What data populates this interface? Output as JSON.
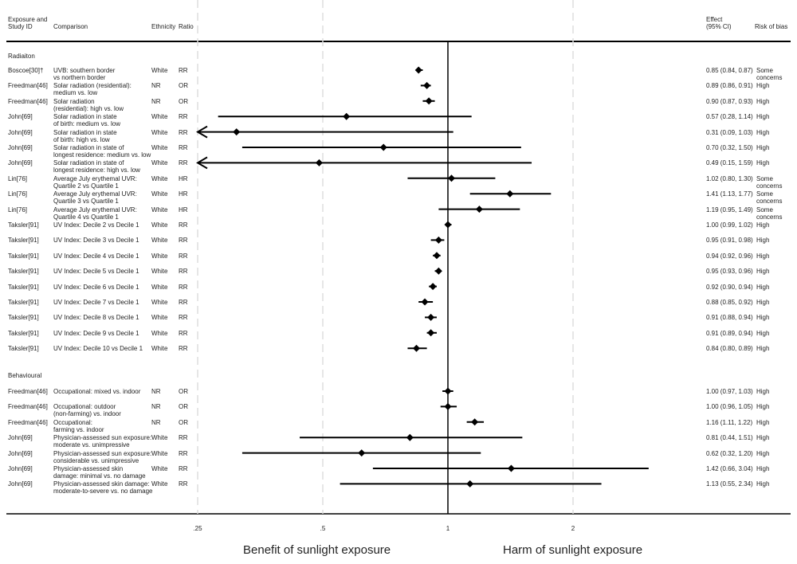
{
  "headers": {
    "study": "Exposure and\nStudy ID",
    "comparison": "Comparison",
    "ethnicity": "Ethnicity",
    "ratio": "Ratio",
    "effect": "Effect\n(95% CI)",
    "bias": "Risk of bias"
  },
  "sections": [
    {
      "title": "Radiaiton",
      "rows": [
        {
          "study": "Boscoe[30]†",
          "comparison": "UVB: southern border\nvs northern border",
          "ethnicity": "White",
          "ratio": "RR",
          "est": 0.85,
          "lo": 0.84,
          "hi": 0.87,
          "effect": "0.85 (0.84, 0.87)",
          "bias": "Some\nconcerns"
        },
        {
          "study": "Freedman[46]",
          "comparison": "Solar radiation (residential):\nmedium vs. low",
          "ethnicity": "NR",
          "ratio": "OR",
          "est": 0.89,
          "lo": 0.86,
          "hi": 0.91,
          "effect": "0.89 (0.86, 0.91)",
          "bias": "High"
        },
        {
          "study": "Freedman[46]",
          "comparison": "Solar radiation\n(residential): high vs. low",
          "ethnicity": "NR",
          "ratio": "OR",
          "est": 0.9,
          "lo": 0.87,
          "hi": 0.93,
          "effect": "0.90 (0.87, 0.93)",
          "bias": "High"
        },
        {
          "study": "John[69]",
          "comparison": "Solar radiation in state\nof birth: medium vs. low",
          "ethnicity": "White",
          "ratio": "RR",
          "est": 0.57,
          "lo": 0.28,
          "hi": 1.14,
          "effect": "0.57 (0.28, 1.14)",
          "bias": "High"
        },
        {
          "study": "John[69]",
          "comparison": "Solar radiation in state\nof birth: high vs. low",
          "ethnicity": "White",
          "ratio": "RR",
          "est": 0.31,
          "lo": 0.09,
          "hi": 1.03,
          "effect": "0.31 (0.09, 1.03)",
          "bias": "High"
        },
        {
          "study": "John[69]",
          "comparison": "Solar radiation in state of\nlongest residence: medium vs. low",
          "ethnicity": "White",
          "ratio": "RR",
          "est": 0.7,
          "lo": 0.32,
          "hi": 1.5,
          "effect": "0.70 (0.32, 1.50)",
          "bias": "High"
        },
        {
          "study": "John[69]",
          "comparison": "Solar radiation in state of\nlongest residence: high vs. low",
          "ethnicity": "White",
          "ratio": "RR",
          "est": 0.49,
          "lo": 0.15,
          "hi": 1.59,
          "effect": "0.49 (0.15, 1.59)",
          "bias": "High"
        },
        {
          "study": "Lin[76]",
          "comparison": "Average July erythemal UVR:\nQuartile 2 vs Quartile 1",
          "ethnicity": "White",
          "ratio": "HR",
          "est": 1.02,
          "lo": 0.8,
          "hi": 1.3,
          "effect": "1.02 (0.80, 1.30)",
          "bias": "Some\nconcerns"
        },
        {
          "study": "Lin[76]",
          "comparison": "Average July erythemal UVR:\nQuartile 3 vs Quartile 1",
          "ethnicity": "White",
          "ratio": "HR",
          "est": 1.41,
          "lo": 1.13,
          "hi": 1.77,
          "effect": "1.41 (1.13, 1.77)",
          "bias": "Some\nconcerns"
        },
        {
          "study": "Lin[76]",
          "comparison": "Average July erythemal UVR:\nQuartile 4 vs Quartile 1",
          "ethnicity": "White",
          "ratio": "HR",
          "est": 1.19,
          "lo": 0.95,
          "hi": 1.49,
          "effect": "1.19 (0.95, 1.49)",
          "bias": "Some\nconcerns"
        },
        {
          "study": "Taksler[91]",
          "comparison": "UV Index: Decile 2 vs Decile 1",
          "ethnicity": "White",
          "ratio": "RR",
          "est": 1.0,
          "lo": 0.99,
          "hi": 1.02,
          "effect": "1.00 (0.99, 1.02)",
          "bias": "High"
        },
        {
          "study": "Taksler[91]",
          "comparison": "UV Index: Decile 3 vs Decile 1",
          "ethnicity": "White",
          "ratio": "RR",
          "est": 0.95,
          "lo": 0.91,
          "hi": 0.98,
          "effect": "0.95 (0.91, 0.98)",
          "bias": "High"
        },
        {
          "study": "Taksler[91]",
          "comparison": "UV Index: Decile 4 vs Decile 1",
          "ethnicity": "White",
          "ratio": "RR",
          "est": 0.94,
          "lo": 0.92,
          "hi": 0.96,
          "effect": "0.94 (0.92, 0.96)",
          "bias": "High"
        },
        {
          "study": "Taksler[91]",
          "comparison": "UV Index: Decile 5 vs Decile 1",
          "ethnicity": "White",
          "ratio": "RR",
          "est": 0.95,
          "lo": 0.93,
          "hi": 0.96,
          "effect": "0.95 (0.93, 0.96)",
          "bias": "High"
        },
        {
          "study": "Taksler[91]",
          "comparison": "UV Index: Decile 6 vs Decile 1",
          "ethnicity": "White",
          "ratio": "RR",
          "est": 0.92,
          "lo": 0.9,
          "hi": 0.94,
          "effect": "0.92 (0.90, 0.94)",
          "bias": "High"
        },
        {
          "study": "Taksler[91]",
          "comparison": "UV Index: Decile 7 vs Decile 1",
          "ethnicity": "White",
          "ratio": "RR",
          "est": 0.88,
          "lo": 0.85,
          "hi": 0.92,
          "effect": "0.88 (0.85, 0.92)",
          "bias": "High"
        },
        {
          "study": "Taksler[91]",
          "comparison": "UV Index: Decile 8 vs Decile 1",
          "ethnicity": "White",
          "ratio": "RR",
          "est": 0.91,
          "lo": 0.88,
          "hi": 0.94,
          "effect": "0.91 (0.88, 0.94)",
          "bias": "High"
        },
        {
          "study": "Taksler[91]",
          "comparison": "UV Index: Decile 9 vs Decile 1",
          "ethnicity": "White",
          "ratio": "RR",
          "est": 0.91,
          "lo": 0.89,
          "hi": 0.94,
          "effect": "0.91 (0.89, 0.94)",
          "bias": "High"
        },
        {
          "study": "Taksler[91]",
          "comparison": "UV Index: Decile 10 vs Decile 1",
          "ethnicity": "White",
          "ratio": "RR",
          "est": 0.84,
          "lo": 0.8,
          "hi": 0.89,
          "effect": "0.84 (0.80, 0.89)",
          "bias": "High"
        }
      ]
    },
    {
      "title": "Behavioural",
      "rows": [
        {
          "study": "Freedman[46]",
          "comparison": "Occupational: mixed vs. indoor",
          "ethnicity": "NR",
          "ratio": "OR",
          "est": 1.0,
          "lo": 0.97,
          "hi": 1.03,
          "effect": "1.00 (0.97, 1.03)",
          "bias": "High"
        },
        {
          "study": "Freedman[46]",
          "comparison": "Occupational: outdoor\n(non-farming) vs. indoor",
          "ethnicity": "NR",
          "ratio": "OR",
          "est": 1.0,
          "lo": 0.96,
          "hi": 1.05,
          "effect": "1.00 (0.96, 1.05)",
          "bias": "High"
        },
        {
          "study": "Freedman[46]",
          "comparison": "Occupational:\nfarming vs. indoor",
          "ethnicity": "NR",
          "ratio": "OR",
          "est": 1.16,
          "lo": 1.11,
          "hi": 1.22,
          "effect": "1.16 (1.11, 1.22)",
          "bias": "High"
        },
        {
          "study": "John[69]",
          "comparison": "Physician-assessed sun exposure:\nmoderate vs. unimpressive",
          "ethnicity": "White",
          "ratio": "RR",
          "est": 0.81,
          "lo": 0.44,
          "hi": 1.51,
          "effect": "0.81 (0.44, 1.51)",
          "bias": "High"
        },
        {
          "study": "John[69]",
          "comparison": "Physician-assessed sun exposure:\nconsiderable vs. unimpressive",
          "ethnicity": "White",
          "ratio": "RR",
          "est": 0.62,
          "lo": 0.32,
          "hi": 1.2,
          "effect": "0.62 (0.32, 1.20)",
          "bias": "High"
        },
        {
          "study": "John[69]",
          "comparison": "Physician-assessed skin\ndamage: minimal vs. no damage",
          "ethnicity": "White",
          "ratio": "RR",
          "est": 1.42,
          "lo": 0.66,
          "hi": 3.04,
          "effect": "1.42 (0.66, 3.04)",
          "bias": "High"
        },
        {
          "study": "John[69]",
          "comparison": "Physician-assessed skin damage:\nmoderate-to-severe vs. no damage",
          "ethnicity": "White",
          "ratio": "RR",
          "est": 1.13,
          "lo": 0.55,
          "hi": 2.34,
          "effect": "1.13 (0.55, 2.34)",
          "bias": "High"
        }
      ]
    }
  ],
  "chart_data": {
    "type": "forest",
    "x_scale": "log",
    "xlim": [
      0.25,
      3.2
    ],
    "null_line": 1,
    "ticks": [
      0.25,
      0.5,
      1,
      2
    ],
    "tick_labels": [
      ".25",
      ".5",
      "1",
      "2"
    ],
    "grid": "dashed vertical at ticks",
    "marker": "diamond",
    "color": "#000000"
  },
  "footer": {
    "left": "Benefit of sunlight exposure",
    "right": "Harm of sunlight exposure"
  }
}
